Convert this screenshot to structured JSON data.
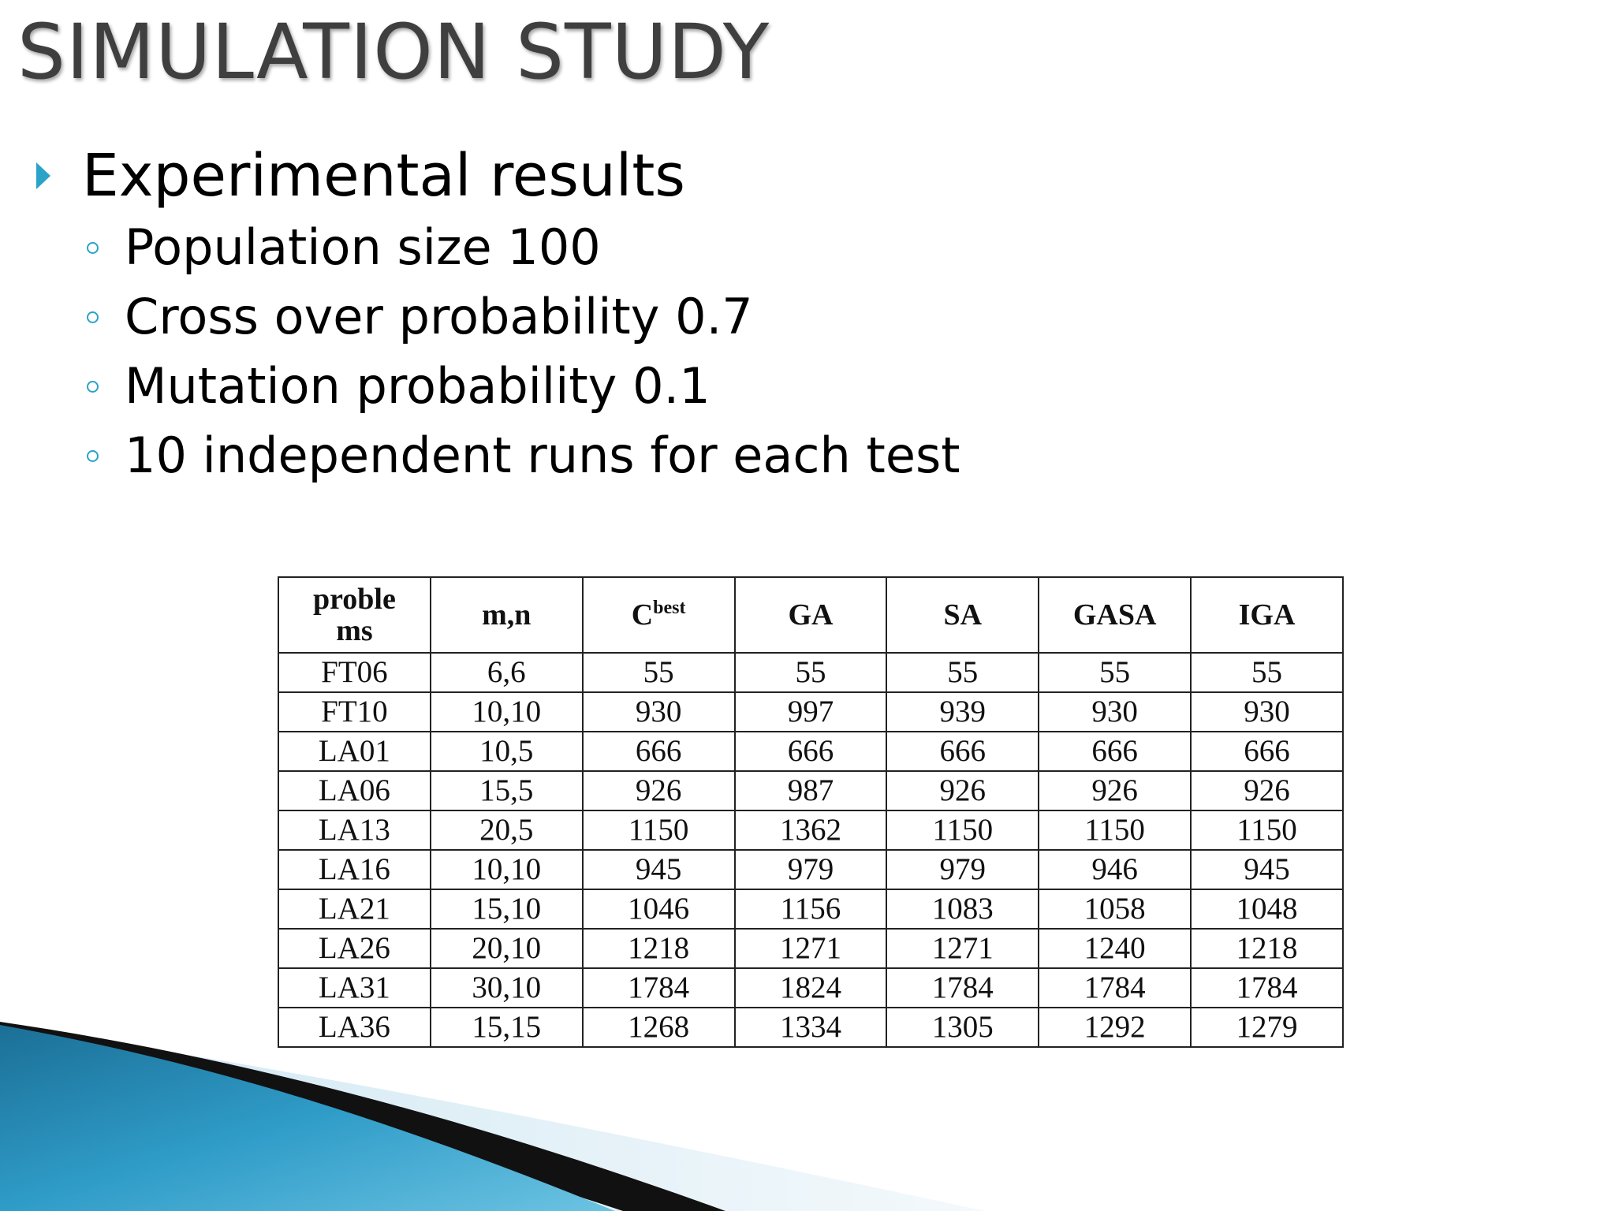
{
  "slide": {
    "title": "SIMULATION STUDY",
    "main_bullet": "Experimental results",
    "sub_bullets": [
      "Population size 100",
      "Cross over probability 0.7",
      "Mutation probability 0.1",
      "10 independent runs for each test"
    ]
  },
  "icons": {
    "main_bullet": "triangle-arrow-icon",
    "sub_bullet": "hollow-circle-icon"
  },
  "colors": {
    "title_text": "#3f3f3f",
    "bullet_accent": "#2aa3c9",
    "wave_blue": "#2f9cc8",
    "wave_dark": "#111111"
  },
  "table": {
    "headers": [
      "proble ms",
      "m,n",
      "C",
      "GA",
      "SA",
      "GASA",
      "IGA"
    ],
    "header_c_superscript": "best",
    "rows": [
      [
        "FT06",
        "6,6",
        "55",
        "55",
        "55",
        "55",
        "55"
      ],
      [
        "FT10",
        "10,10",
        "930",
        "997",
        "939",
        "930",
        "930"
      ],
      [
        "LA01",
        "10,5",
        "666",
        "666",
        "666",
        "666",
        "666"
      ],
      [
        "LA06",
        "15,5",
        "926",
        "987",
        "926",
        "926",
        "926"
      ],
      [
        "LA13",
        "20,5",
        "1150",
        "1362",
        "1150",
        "1150",
        "1150"
      ],
      [
        "LA16",
        "10,10",
        "945",
        "979",
        "979",
        "946",
        "945"
      ],
      [
        "LA21",
        "15,10",
        "1046",
        "1156",
        "1083",
        "1058",
        "1048"
      ],
      [
        "LA26",
        "20,10",
        "1218",
        "1271",
        "1271",
        "1240",
        "1218"
      ],
      [
        "LA31",
        "30,10",
        "1784",
        "1824",
        "1784",
        "1784",
        "1784"
      ],
      [
        "LA36",
        "15,15",
        "1268",
        "1334",
        "1305",
        "1292",
        "1279"
      ]
    ]
  }
}
